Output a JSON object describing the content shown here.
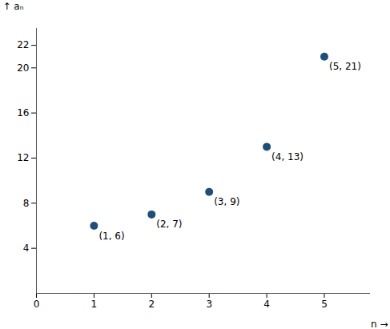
{
  "chart_data": {
    "type": "scatter",
    "x": [
      1,
      2,
      3,
      4,
      5
    ],
    "values": [
      6,
      7,
      9,
      13,
      21
    ],
    "color": "#1f4e79",
    "annotations": [
      {
        "x": 1,
        "y": 6,
        "text": "(1, 6)"
      },
      {
        "x": 2,
        "y": 7,
        "text": "(2, 7)"
      },
      {
        "x": 3,
        "y": 9,
        "text": "(3, 9)"
      },
      {
        "x": 4,
        "y": 13,
        "text": "(4, 13)"
      },
      {
        "x": 5,
        "y": 21,
        "text": "(5, 21)"
      }
    ],
    "x_label": "n",
    "y_label": "aₙ",
    "xlim": [
      0,
      5.8
    ],
    "ylim": [
      0,
      23.5
    ],
    "xticks": [
      0,
      1,
      2,
      3,
      4,
      5
    ],
    "yticks": [
      4,
      8,
      12,
      16,
      20,
      22
    ],
    "grid": false
  }
}
